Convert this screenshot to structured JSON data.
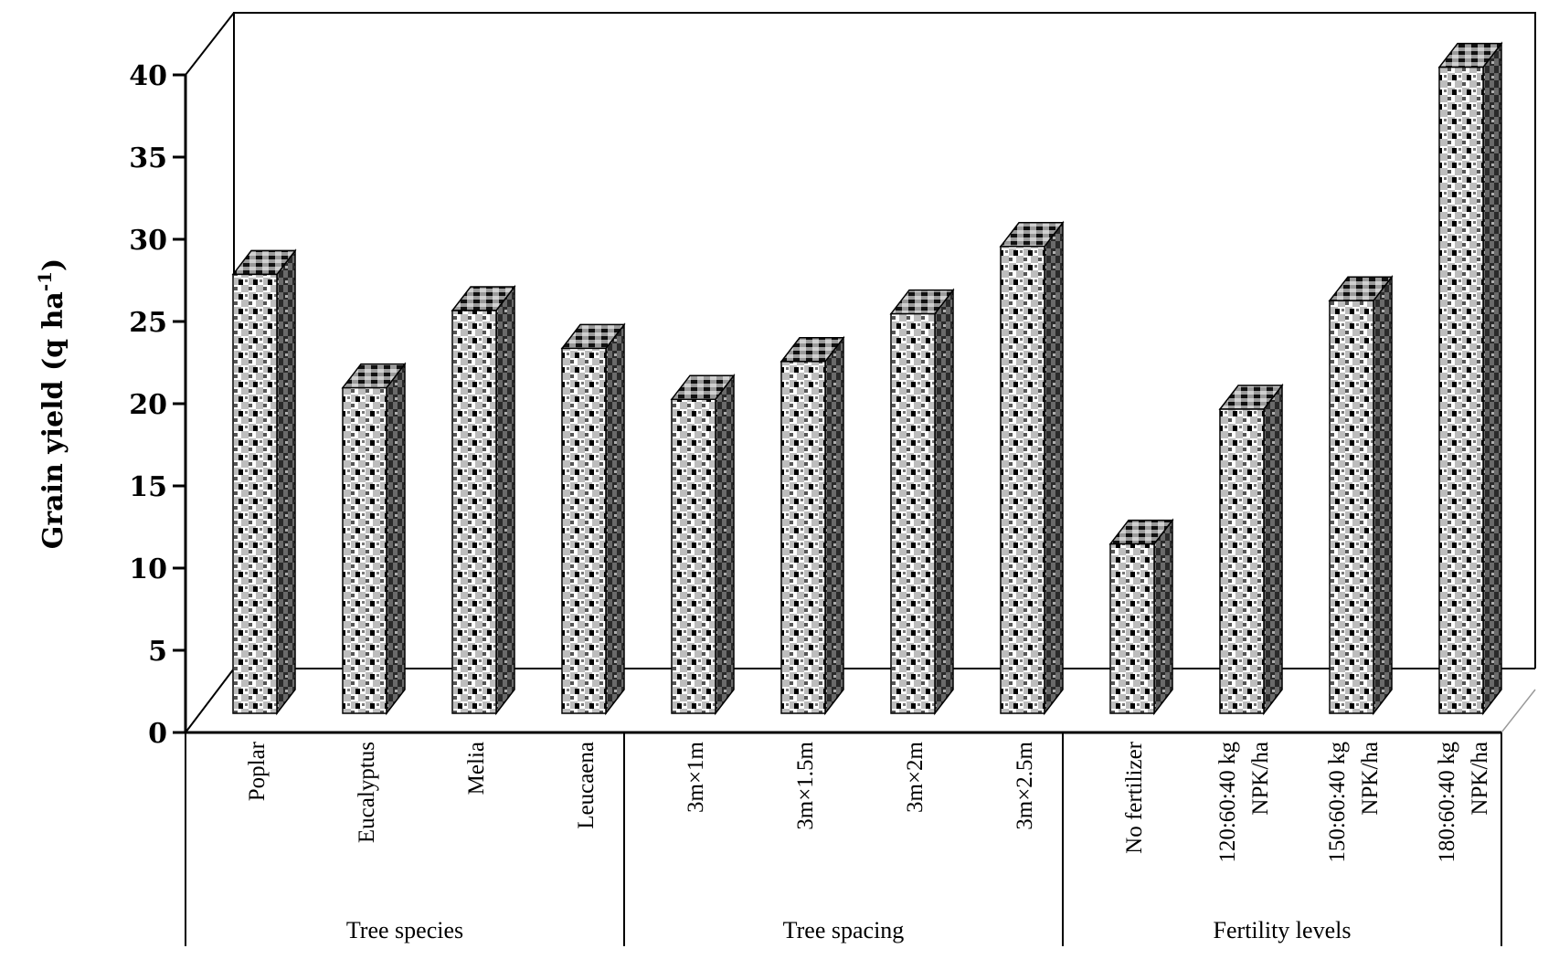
{
  "chart_data": {
    "type": "bar",
    "ylabel": "Grain yield (q ha",
    "ylabel_sup": "-1",
    "ylabel_close": ")",
    "ylim": [
      0,
      40
    ],
    "yticks": [
      "0",
      "5",
      "10",
      "15",
      "20",
      "25",
      "30",
      "35",
      "40"
    ],
    "grid": false,
    "style": "3d-pattern",
    "categories": [
      [
        "Poplar"
      ],
      [
        "Eucalyptus"
      ],
      [
        "Melia"
      ],
      [
        "Leucaena"
      ],
      [
        "3m×1m"
      ],
      [
        "3m×1.5m"
      ],
      [
        "3m×2m"
      ],
      [
        "3m×2.5m"
      ],
      [
        "No fertilizer"
      ],
      [
        "120:60:40 kg",
        "NPK/ha"
      ],
      [
        "150:60:40 kg",
        "NPK/ha"
      ],
      [
        "180:60:40 kg",
        "NPK/ha"
      ]
    ],
    "values": [
      26.7,
      19.8,
      24.5,
      22.2,
      19.1,
      21.4,
      24.3,
      28.4,
      10.3,
      18.5,
      25.1,
      39.3
    ],
    "groups": [
      {
        "label": "Tree species",
        "start": 0,
        "end": 3
      },
      {
        "label": "Tree spacing",
        "start": 4,
        "end": 7
      },
      {
        "label": "Fertility levels",
        "start": 8,
        "end": 11
      }
    ]
  }
}
